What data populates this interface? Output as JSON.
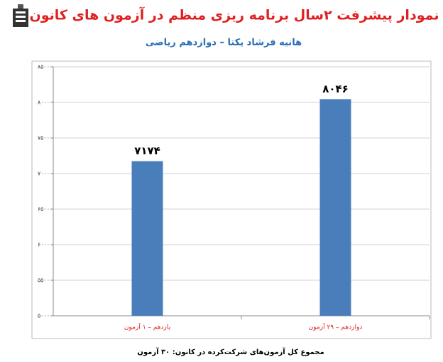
{
  "chart_data": {
    "type": "bar",
    "title": "نمودار پیشرفت ۲سال برنامه ریزی منظم در آزمون های کانون",
    "subtitle": "هانیه فرشاد یکتا – دوازدهم ریاضی",
    "categories": [
      "یازدهم – ۱ آزمون",
      "دوازدهم – ۲۹ آزمون"
    ],
    "values": [
      7174,
      8046
    ],
    "value_labels": [
      "۷۱۷۴",
      "۸۰۴۶"
    ],
    "color": "#4a7ebb",
    "ylim": [
      5000,
      8500
    ],
    "yticks": [
      {
        "value": 5000,
        "label": "۵۰۰۰"
      },
      {
        "value": 5500,
        "label": "۵۵۰۰"
      },
      {
        "value": 6000,
        "label": "۶۰۰۰"
      },
      {
        "value": 6500,
        "label": "۶۵۰۰"
      },
      {
        "value": 7000,
        "label": "۷۰۰۰"
      },
      {
        "value": 7500,
        "label": "۷۵۰۰"
      },
      {
        "value": 8000,
        "label": "۸۰۰۰"
      },
      {
        "value": 8500,
        "label": "۸۵۰۰"
      }
    ],
    "grid": true,
    "footnote": "مجموع کل آزمون‌های شرکت‌کرده در کانون: ۳۰ آزمون"
  }
}
